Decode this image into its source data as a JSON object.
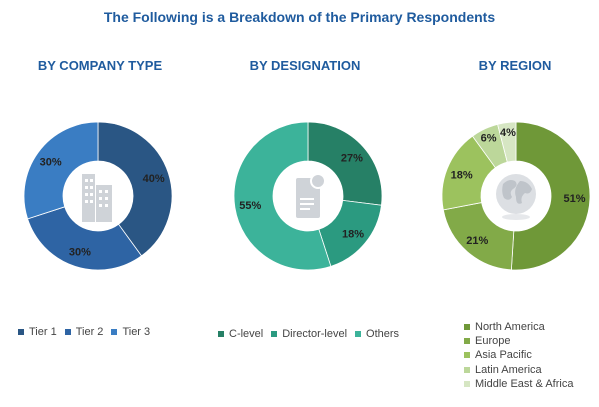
{
  "title": "The Following is a Breakdown of the Primary Respondents",
  "chart_data": [
    {
      "type": "pie",
      "title": "BY COMPANY TYPE",
      "categories": [
        "Tier 1",
        "Tier 2",
        "Tier 3"
      ],
      "values": [
        40,
        30,
        30
      ],
      "colors": [
        "#2a5684",
        "#2e64a4",
        "#3a7dc3"
      ],
      "label_text": [
        "40%",
        "30%",
        "30%"
      ],
      "center_icon": "office-building-icon",
      "legend_position": "bottom"
    },
    {
      "type": "pie",
      "title": "BY DESIGNATION",
      "categories": [
        "C-level",
        "Director-level",
        "Others"
      ],
      "values": [
        27,
        18,
        55
      ],
      "colors": [
        "#268066",
        "#2b9a80",
        "#3cb39a"
      ],
      "label_text": [
        "27%",
        "18%",
        "55%"
      ],
      "center_icon": "document-badge-icon",
      "legend_position": "bottom"
    },
    {
      "type": "pie",
      "title": "BY REGION",
      "categories": [
        "North America",
        "Europe",
        "Asia Pacific",
        "Latin America",
        "Middle East & Africa"
      ],
      "values": [
        51,
        21,
        18,
        6,
        4
      ],
      "colors": [
        "#6f9838",
        "#82aa48",
        "#9cc25e",
        "#bcd79a",
        "#d6e6c3"
      ],
      "label_text": [
        "51%",
        "21%",
        "18%",
        "6%",
        "4%"
      ],
      "center_icon": "globe-icon",
      "legend_position": "bottom"
    }
  ]
}
